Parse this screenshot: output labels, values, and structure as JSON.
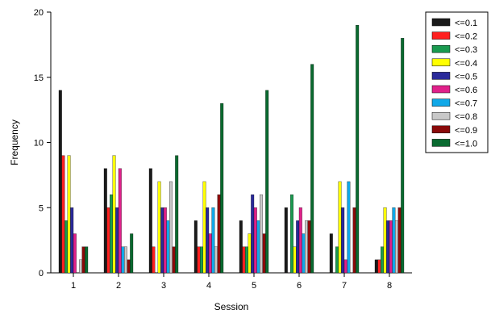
{
  "chart_data": {
    "type": "bar",
    "title": "",
    "xlabel": "Session",
    "ylabel": "Frequency",
    "ylim": [
      0,
      20
    ],
    "yticks": [
      0,
      5,
      10,
      15,
      20
    ],
    "grid": false,
    "legend_position": "top-right (outside plot)",
    "categories": [
      "1",
      "2",
      "3",
      "4",
      "5",
      "6",
      "7",
      "8"
    ],
    "series": [
      {
        "name": "<=0.1",
        "color": "#1a1a1a",
        "values": [
          14,
          8,
          8,
          4,
          4,
          5,
          3,
          1
        ]
      },
      {
        "name": "<=0.2",
        "color": "#ff2020",
        "values": [
          9,
          5,
          2,
          2,
          2,
          0,
          0,
          1
        ]
      },
      {
        "name": "<=0.3",
        "color": "#1a9a50",
        "values": [
          4,
          6,
          0,
          2,
          2,
          6,
          2,
          2
        ]
      },
      {
        "name": "<=0.4",
        "color": "#ffff00",
        "values": [
          9,
          9,
          7,
          7,
          3,
          2,
          7,
          5
        ]
      },
      {
        "name": "<=0.5",
        "color": "#2a2a9a",
        "values": [
          5,
          5,
          5,
          5,
          6,
          4,
          5,
          4
        ]
      },
      {
        "name": "<=0.6",
        "color": "#e0208a",
        "values": [
          3,
          8,
          5,
          3,
          5,
          5,
          1,
          4
        ]
      },
      {
        "name": "<=0.7",
        "color": "#10a8e8",
        "values": [
          0,
          2,
          4,
          5,
          4,
          3,
          7,
          5
        ]
      },
      {
        "name": "<=0.8",
        "color": "#c8c8c8",
        "values": [
          1,
          2,
          7,
          2,
          6,
          4,
          0,
          4
        ]
      },
      {
        "name": "<=0.9",
        "color": "#8a0a0a",
        "values": [
          2,
          1,
          2,
          6,
          3,
          4,
          5,
          5
        ]
      },
      {
        "name": "<=1.0",
        "color": "#0a6a30",
        "values": [
          2,
          3,
          9,
          13,
          14,
          16,
          19,
          18
        ]
      }
    ]
  }
}
